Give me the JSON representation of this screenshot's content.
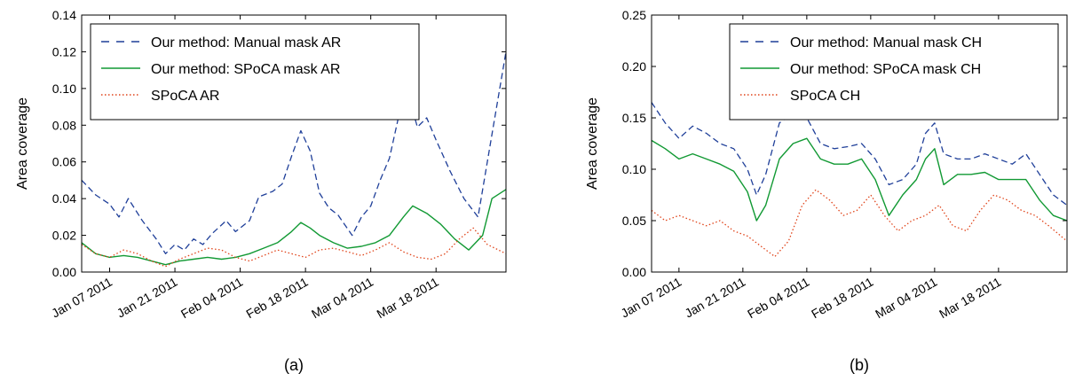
{
  "chart_data": [
    {
      "type": "line",
      "panel_label": "(a)",
      "ylabel": "Area coverage",
      "xlabel": "",
      "ylim": [
        0,
        0.14
      ],
      "yticks": [
        0.0,
        0.02,
        0.04,
        0.06,
        0.08,
        0.1,
        0.12,
        0.14
      ],
      "ytick_labels": [
        "0.00",
        "0.02",
        "0.04",
        "0.06",
        "0.08",
        "0.10",
        "0.12",
        "0.14"
      ],
      "xlim": [
        "2011-01-01",
        "2011-04-02"
      ],
      "xticks": [
        "2011-01-07",
        "2011-01-21",
        "2011-02-04",
        "2011-02-18",
        "2011-03-04",
        "2011-03-18"
      ],
      "xtick_labels": [
        "Jan 07 2011",
        "Jan 21 2011",
        "Feb 04 2011",
        "Feb 18 2011",
        "Mar 04 2011",
        "Mar 18 2011"
      ],
      "grid": false,
      "legend_position": "upper-left",
      "series": [
        {
          "name": "Our method: Manual mask AR",
          "style": "dashed",
          "color": "#1f3f99",
          "x": [
            "2011-01-01",
            "2011-01-04",
            "2011-01-07",
            "2011-01-09",
            "2011-01-11",
            "2011-01-14",
            "2011-01-17",
            "2011-01-19",
            "2011-01-21",
            "2011-01-23",
            "2011-01-25",
            "2011-01-27",
            "2011-01-29",
            "2011-02-01",
            "2011-02-03",
            "2011-02-06",
            "2011-02-08",
            "2011-02-11",
            "2011-02-13",
            "2011-02-15",
            "2011-02-17",
            "2011-02-19",
            "2011-02-21",
            "2011-02-23",
            "2011-02-25",
            "2011-02-28",
            "2011-03-02",
            "2011-03-04",
            "2011-03-06",
            "2011-03-08",
            "2011-03-10",
            "2011-03-12",
            "2011-03-14",
            "2011-03-16",
            "2011-03-18",
            "2011-03-21",
            "2011-03-24",
            "2011-03-27",
            "2011-03-30",
            "2011-04-02"
          ],
          "y": [
            0.05,
            0.042,
            0.037,
            0.03,
            0.04,
            0.028,
            0.018,
            0.01,
            0.015,
            0.012,
            0.018,
            0.015,
            0.021,
            0.028,
            0.022,
            0.028,
            0.041,
            0.044,
            0.048,
            0.063,
            0.077,
            0.066,
            0.043,
            0.035,
            0.031,
            0.02,
            0.03,
            0.036,
            0.05,
            0.062,
            0.085,
            0.097,
            0.079,
            0.084,
            0.072,
            0.055,
            0.04,
            0.03,
            0.075,
            0.12
          ]
        },
        {
          "name": "Our method: SPoCA mask AR",
          "style": "solid",
          "color": "#119933",
          "x": [
            "2011-01-01",
            "2011-01-04",
            "2011-01-07",
            "2011-01-10",
            "2011-01-13",
            "2011-01-16",
            "2011-01-19",
            "2011-01-22",
            "2011-01-25",
            "2011-01-28",
            "2011-01-31",
            "2011-02-03",
            "2011-02-06",
            "2011-02-09",
            "2011-02-12",
            "2011-02-15",
            "2011-02-17",
            "2011-02-19",
            "2011-02-21",
            "2011-02-24",
            "2011-02-27",
            "2011-03-02",
            "2011-03-05",
            "2011-03-08",
            "2011-03-11",
            "2011-03-13",
            "2011-03-16",
            "2011-03-19",
            "2011-03-22",
            "2011-03-25",
            "2011-03-28",
            "2011-03-30",
            "2011-04-02"
          ],
          "y": [
            0.016,
            0.01,
            0.008,
            0.009,
            0.008,
            0.006,
            0.004,
            0.006,
            0.007,
            0.008,
            0.007,
            0.008,
            0.01,
            0.013,
            0.016,
            0.022,
            0.027,
            0.024,
            0.02,
            0.016,
            0.013,
            0.014,
            0.016,
            0.02,
            0.03,
            0.036,
            0.032,
            0.026,
            0.018,
            0.012,
            0.02,
            0.04,
            0.045
          ]
        },
        {
          "name": "SPoCA AR",
          "style": "dotted",
          "color": "#e0441a",
          "x": [
            "2011-01-01",
            "2011-01-04",
            "2011-01-07",
            "2011-01-10",
            "2011-01-13",
            "2011-01-16",
            "2011-01-19",
            "2011-01-22",
            "2011-01-25",
            "2011-01-28",
            "2011-01-31",
            "2011-02-03",
            "2011-02-06",
            "2011-02-09",
            "2011-02-12",
            "2011-02-15",
            "2011-02-18",
            "2011-02-21",
            "2011-02-24",
            "2011-02-27",
            "2011-03-02",
            "2011-03-05",
            "2011-03-08",
            "2011-03-11",
            "2011-03-14",
            "2011-03-17",
            "2011-03-20",
            "2011-03-23",
            "2011-03-26",
            "2011-03-29",
            "2011-04-02"
          ],
          "y": [
            0.015,
            0.01,
            0.008,
            0.012,
            0.01,
            0.006,
            0.003,
            0.007,
            0.01,
            0.013,
            0.012,
            0.008,
            0.006,
            0.009,
            0.012,
            0.01,
            0.008,
            0.012,
            0.013,
            0.011,
            0.009,
            0.012,
            0.016,
            0.011,
            0.008,
            0.007,
            0.01,
            0.018,
            0.024,
            0.015,
            0.01
          ]
        }
      ]
    },
    {
      "type": "line",
      "panel_label": "(b)",
      "ylabel": "Area coverage",
      "xlabel": "",
      "ylim": [
        0,
        0.25
      ],
      "yticks": [
        0.0,
        0.05,
        0.1,
        0.15,
        0.2,
        0.25
      ],
      "ytick_labels": [
        "0.00",
        "0.05",
        "0.10",
        "0.15",
        "0.20",
        "0.25"
      ],
      "xlim": [
        "2011-01-01",
        "2011-04-02"
      ],
      "xticks": [
        "2011-01-07",
        "2011-01-21",
        "2011-02-04",
        "2011-02-18",
        "2011-03-04",
        "2011-03-18"
      ],
      "xtick_labels": [
        "Jan 07 2011",
        "Jan 21 2011",
        "Feb 04 2011",
        "Feb 18 2011",
        "Mar 04 2011",
        "Mar 18 2011"
      ],
      "grid": false,
      "legend_position": "upper-right",
      "series": [
        {
          "name": "Our method: Manual mask CH",
          "style": "dashed",
          "color": "#1f3f99",
          "x": [
            "2011-01-01",
            "2011-01-04",
            "2011-01-07",
            "2011-01-10",
            "2011-01-13",
            "2011-01-16",
            "2011-01-19",
            "2011-01-22",
            "2011-01-24",
            "2011-01-26",
            "2011-01-29",
            "2011-02-01",
            "2011-02-04",
            "2011-02-07",
            "2011-02-10",
            "2011-02-13",
            "2011-02-16",
            "2011-02-19",
            "2011-02-22",
            "2011-02-25",
            "2011-02-28",
            "2011-03-02",
            "2011-03-04",
            "2011-03-06",
            "2011-03-09",
            "2011-03-12",
            "2011-03-15",
            "2011-03-18",
            "2011-03-21",
            "2011-03-24",
            "2011-03-27",
            "2011-03-30",
            "2011-04-02"
          ],
          "y": [
            0.165,
            0.145,
            0.13,
            0.142,
            0.135,
            0.125,
            0.12,
            0.1,
            0.075,
            0.095,
            0.145,
            0.155,
            0.15,
            0.125,
            0.12,
            0.122,
            0.125,
            0.11,
            0.085,
            0.09,
            0.105,
            0.135,
            0.145,
            0.115,
            0.11,
            0.11,
            0.115,
            0.11,
            0.105,
            0.115,
            0.095,
            0.075,
            0.065
          ]
        },
        {
          "name": "Our method: SPoCA mask CH",
          "style": "solid",
          "color": "#119933",
          "x": [
            "2011-01-01",
            "2011-01-04",
            "2011-01-07",
            "2011-01-10",
            "2011-01-13",
            "2011-01-16",
            "2011-01-19",
            "2011-01-22",
            "2011-01-24",
            "2011-01-26",
            "2011-01-29",
            "2011-02-01",
            "2011-02-04",
            "2011-02-07",
            "2011-02-10",
            "2011-02-13",
            "2011-02-16",
            "2011-02-19",
            "2011-02-22",
            "2011-02-25",
            "2011-02-28",
            "2011-03-02",
            "2011-03-04",
            "2011-03-06",
            "2011-03-09",
            "2011-03-12",
            "2011-03-15",
            "2011-03-18",
            "2011-03-21",
            "2011-03-24",
            "2011-03-27",
            "2011-03-30",
            "2011-04-02"
          ],
          "y": [
            0.128,
            0.12,
            0.11,
            0.115,
            0.11,
            0.105,
            0.098,
            0.078,
            0.05,
            0.065,
            0.11,
            0.125,
            0.13,
            0.11,
            0.105,
            0.105,
            0.11,
            0.09,
            0.055,
            0.075,
            0.09,
            0.11,
            0.12,
            0.085,
            0.095,
            0.095,
            0.097,
            0.09,
            0.09,
            0.09,
            0.07,
            0.055,
            0.05
          ]
        },
        {
          "name": "SPoCA CH",
          "style": "dotted",
          "color": "#e0441a",
          "x": [
            "2011-01-01",
            "2011-01-04",
            "2011-01-07",
            "2011-01-10",
            "2011-01-13",
            "2011-01-16",
            "2011-01-19",
            "2011-01-22",
            "2011-01-25",
            "2011-01-28",
            "2011-01-31",
            "2011-02-03",
            "2011-02-06",
            "2011-02-09",
            "2011-02-12",
            "2011-02-15",
            "2011-02-18",
            "2011-02-21",
            "2011-02-24",
            "2011-02-27",
            "2011-03-02",
            "2011-03-05",
            "2011-03-08",
            "2011-03-11",
            "2011-03-14",
            "2011-03-17",
            "2011-03-20",
            "2011-03-23",
            "2011-03-26",
            "2011-03-29",
            "2011-04-02"
          ],
          "y": [
            0.06,
            0.05,
            0.055,
            0.05,
            0.045,
            0.05,
            0.04,
            0.035,
            0.025,
            0.015,
            0.03,
            0.065,
            0.08,
            0.07,
            0.055,
            0.06,
            0.075,
            0.055,
            0.04,
            0.05,
            0.055,
            0.065,
            0.045,
            0.04,
            0.06,
            0.075,
            0.07,
            0.06,
            0.055,
            0.045,
            0.03
          ]
        }
      ]
    }
  ]
}
